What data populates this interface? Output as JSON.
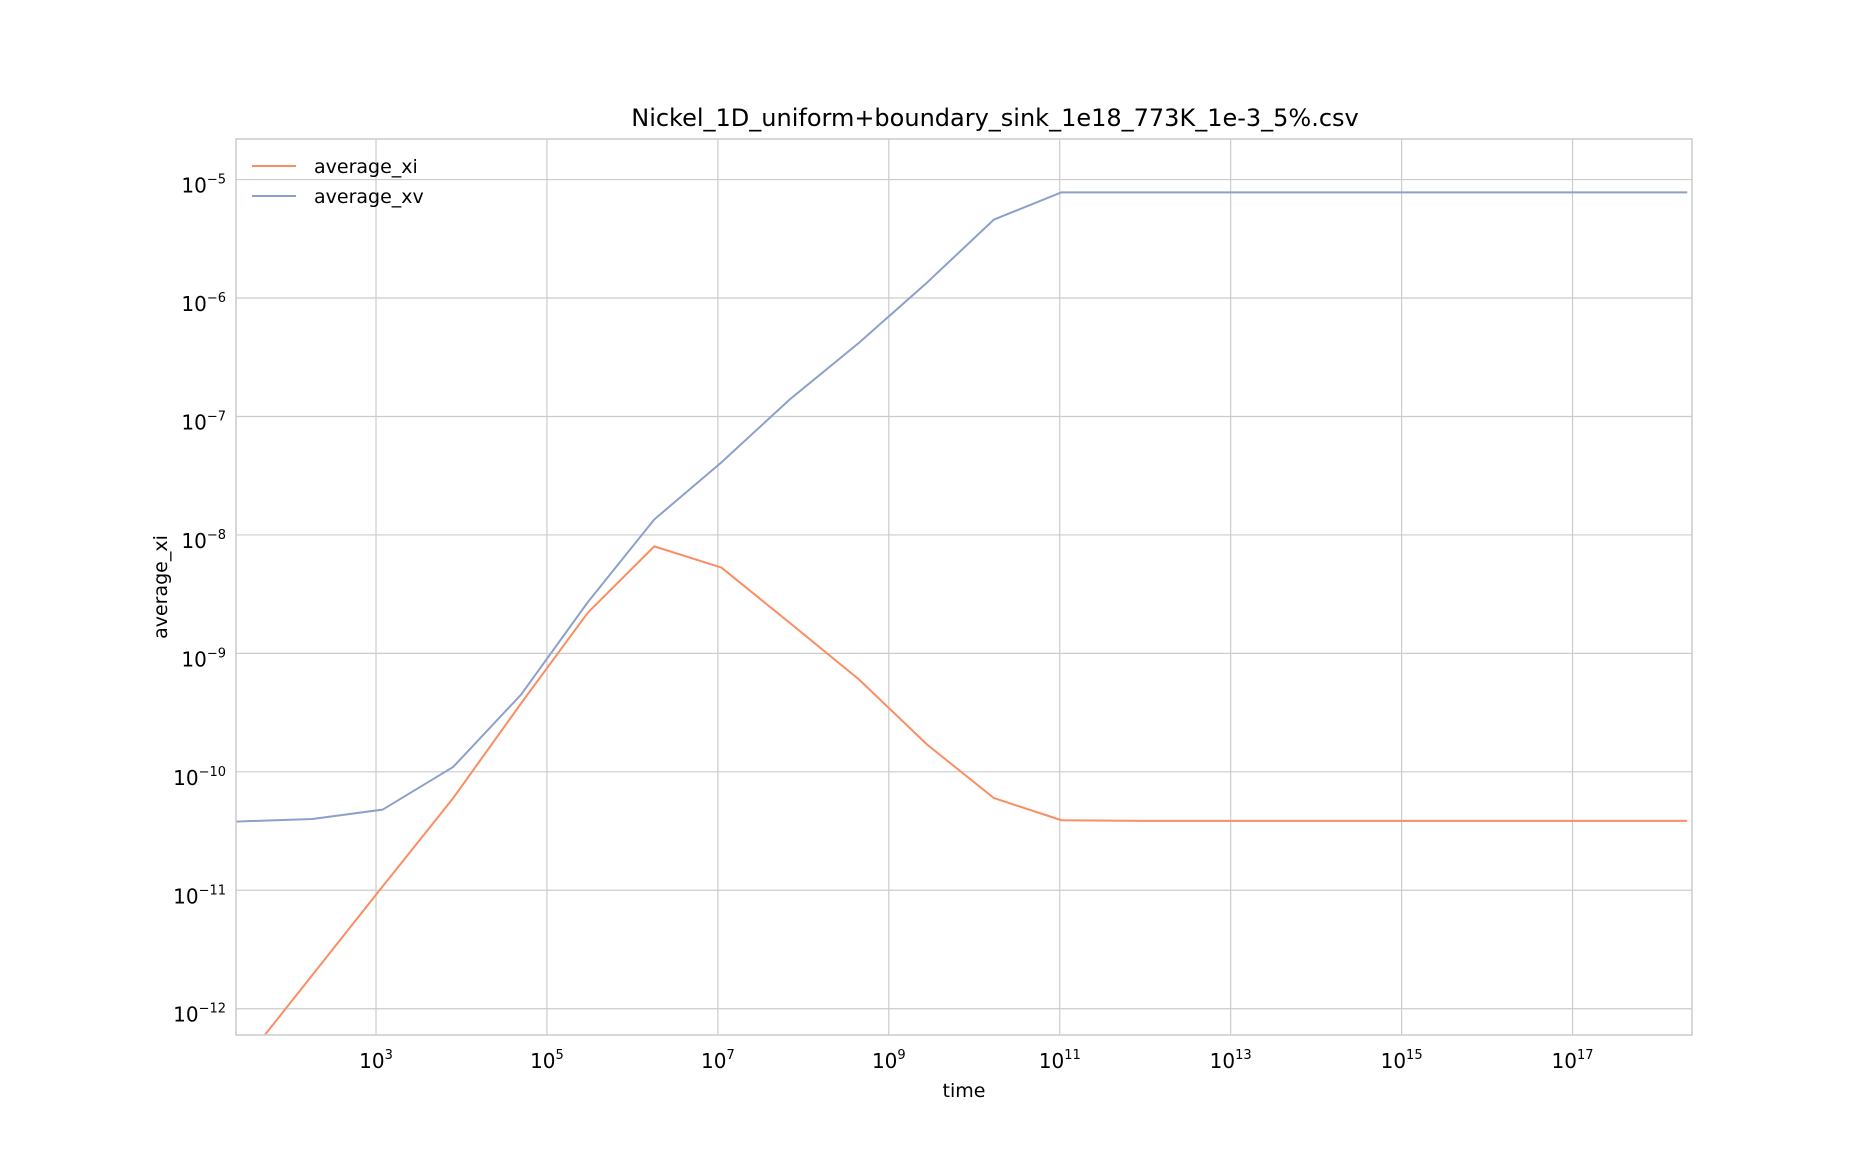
{
  "chart_data": {
    "type": "line",
    "title": "Nickel_1D_uniform+boundary_sink_1e18_773K_1e-3_5%.csv",
    "xlabel": "time",
    "ylabel": "average_xi",
    "xscale": "log",
    "yscale": "log",
    "xlim": [
      23,
      2.5e+18
    ],
    "ylim": [
      6e-13,
      2.2e-05
    ],
    "grid": true,
    "legend_position": "top-left",
    "x_ticks": [
      {
        "base": "10",
        "exp": "3",
        "value": 1000.0
      },
      {
        "base": "10",
        "exp": "5",
        "value": 100000.0
      },
      {
        "base": "10",
        "exp": "7",
        "value": 10000000.0
      },
      {
        "base": "10",
        "exp": "9",
        "value": 1000000000.0
      },
      {
        "base": "10",
        "exp": "11",
        "value": 100000000000.0
      },
      {
        "base": "10",
        "exp": "13",
        "value": 10000000000000.0
      },
      {
        "base": "10",
        "exp": "15",
        "value": 1000000000000000.0
      },
      {
        "base": "10",
        "exp": "17",
        "value": 1e+17
      }
    ],
    "y_ticks": [
      {
        "base": "10",
        "exp": "−12",
        "value": 1e-12
      },
      {
        "base": "10",
        "exp": "−11",
        "value": 1e-11
      },
      {
        "base": "10",
        "exp": "−10",
        "value": 1e-10
      },
      {
        "base": "10",
        "exp": "−9",
        "value": 1e-09
      },
      {
        "base": "10",
        "exp": "−8",
        "value": 1e-08
      },
      {
        "base": "10",
        "exp": "−7",
        "value": 1e-07
      },
      {
        "base": "10",
        "exp": "−6",
        "value": 1e-06
      },
      {
        "base": "10",
        "exp": "−5",
        "value": 1e-05
      }
    ],
    "series": [
      {
        "name": "average_xi",
        "color": "#fc8d62",
        "x": [
          50,
          1100.0,
          8000.0,
          50000.0,
          300000.0,
          1800000.0,
          11000000.0,
          70000000.0,
          450000000.0,
          2800000000.0,
          17000000000.0,
          105000000000.0,
          1000000000000.0,
          10000000000000.0,
          100000000000000.0,
          1000000000000000.0,
          1e+16,
          1e+17,
          1e+18,
          2.2e+18
        ],
        "y": [
          6e-13,
          1e-11,
          6e-11,
          3.8e-10,
          2.2e-09,
          8e-09,
          5.3e-09,
          1.8e-09,
          6e-10,
          1.7e-10,
          6e-11,
          3.9e-11,
          3.85e-11,
          3.85e-11,
          3.85e-11,
          3.85e-11,
          3.85e-11,
          3.85e-11,
          3.85e-11,
          3.85e-11
        ]
      },
      {
        "name": "average_xv",
        "color": "#8da0cb",
        "x": [
          23,
          180,
          1200.0,
          8000.0,
          50000.0,
          300000.0,
          1800000.0,
          11000000.0,
          70000000.0,
          450000000.0,
          2800000000.0,
          17000000000.0,
          105000000000.0,
          1000000000000.0,
          10000000000000.0,
          100000000000000.0,
          1000000000000000.0,
          1e+16,
          1e+17,
          1e+18,
          2.2e+18
        ],
        "y": [
          3.8e-11,
          4e-11,
          4.8e-11,
          1.1e-10,
          4.5e-10,
          2.7e-09,
          1.35e-08,
          4.1e-08,
          1.4e-07,
          4.2e-07,
          1.35e-06,
          4.6e-06,
          7.8e-06,
          7.8e-06,
          7.8e-06,
          7.8e-06,
          7.8e-06,
          7.8e-06,
          7.8e-06,
          7.8e-06,
          7.8e-06
        ]
      }
    ]
  }
}
